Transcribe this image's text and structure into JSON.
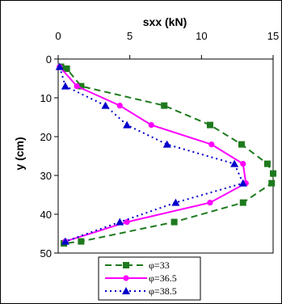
{
  "chart_data": {
    "type": "line",
    "title": "sxx (kN)",
    "xlabel": "",
    "ylabel": "y (cm)",
    "xlim": [
      0,
      15
    ],
    "ylim": [
      0,
      50
    ],
    "x_axis_position": "top",
    "y_axis_inverted": true,
    "x_ticks": [
      "0",
      "5",
      "10",
      "15"
    ],
    "y_ticks": [
      "0",
      "10",
      "20",
      "30",
      "40",
      "50"
    ],
    "grid": false,
    "legend_position": "bottom",
    "series": [
      {
        "name": "φ=33",
        "color": "#1e7a1e",
        "dash": "8,5",
        "marker": "square",
        "points": [
          [
            0.2,
            2
          ],
          [
            0.6,
            2.5
          ],
          [
            1.6,
            7
          ],
          [
            7.4,
            12
          ],
          [
            10.6,
            17
          ],
          [
            12.8,
            22
          ],
          [
            14.6,
            27
          ],
          [
            15,
            29.5
          ],
          [
            14.9,
            32
          ],
          [
            12.9,
            37
          ],
          [
            8.1,
            42
          ],
          [
            1.6,
            47
          ],
          [
            0.4,
            47.5
          ]
        ]
      },
      {
        "name": "φ=36.5",
        "color": "#ff00ff",
        "dash": "",
        "marker": "circle",
        "points": [
          [
            0.1,
            2
          ],
          [
            1.3,
            7
          ],
          [
            4.3,
            12
          ],
          [
            6.5,
            17
          ],
          [
            10.7,
            22
          ],
          [
            12.9,
            27
          ],
          [
            13.1,
            32
          ],
          [
            10.6,
            37
          ],
          [
            4.8,
            42
          ],
          [
            0.5,
            47
          ]
        ]
      },
      {
        "name": "φ=38.5",
        "color": "#0000cc",
        "dash": "2,4",
        "marker": "triangle",
        "points": [
          [
            0.1,
            2
          ],
          [
            0.5,
            7
          ],
          [
            3.3,
            12
          ],
          [
            4.8,
            17
          ],
          [
            7.6,
            22
          ],
          [
            12.3,
            27
          ],
          [
            12.9,
            32
          ],
          [
            8.2,
            37
          ],
          [
            4.3,
            42
          ],
          [
            0.5,
            47
          ]
        ]
      }
    ]
  }
}
